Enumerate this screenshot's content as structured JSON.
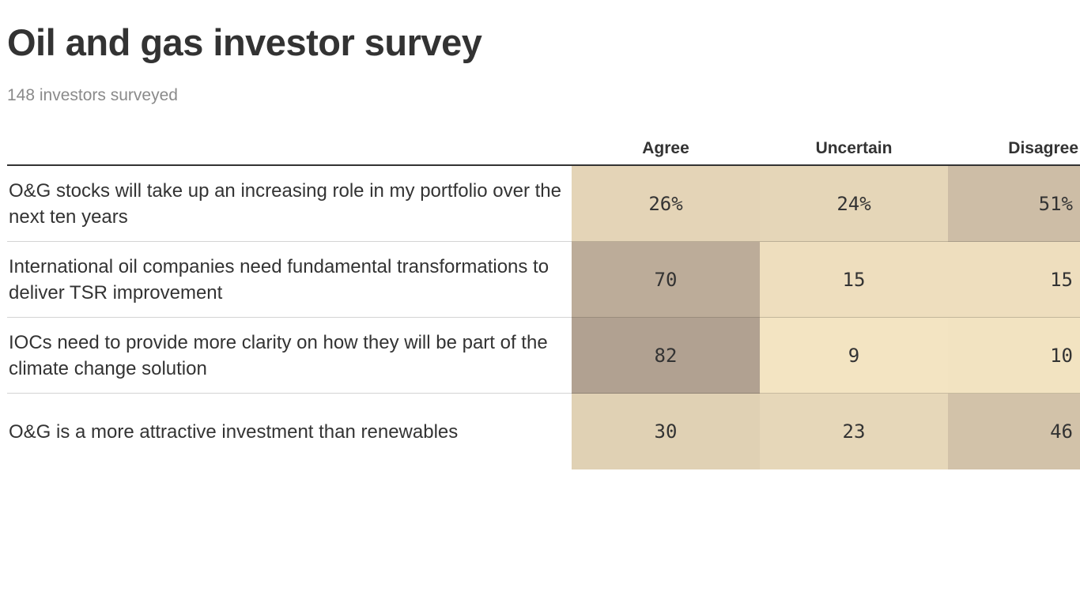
{
  "title": "Oil and gas investor survey",
  "subtitle": "148 investors surveyed",
  "chart_data": {
    "type": "table",
    "columns": [
      "Agree",
      "Uncertain",
      "Disagree"
    ],
    "rows": [
      {
        "label": "O&G stocks will take up an increasing role in my portfolio over the next ten years",
        "values": [
          26,
          24,
          51
        ],
        "display": [
          "26%",
          "24%",
          "51%"
        ]
      },
      {
        "label": "International oil companies need fundamental transformations to deliver TSR improvement",
        "values": [
          70,
          15,
          15
        ],
        "display": [
          "70",
          "15",
          "15"
        ]
      },
      {
        "label": "IOCs need to provide more clarity on how they will be part of the climate change solution",
        "values": [
          82,
          9,
          10
        ],
        "display": [
          "82",
          "9",
          "10"
        ]
      },
      {
        "label": "O&G is a more attractive investment than renewables",
        "values": [
          30,
          23,
          46
        ],
        "display": [
          "30",
          "23",
          "46"
        ]
      }
    ],
    "color_scale": {
      "min_value": 9,
      "max_value": 82,
      "low_color": "#f3e4c2",
      "high_color": "#b1a191"
    }
  }
}
